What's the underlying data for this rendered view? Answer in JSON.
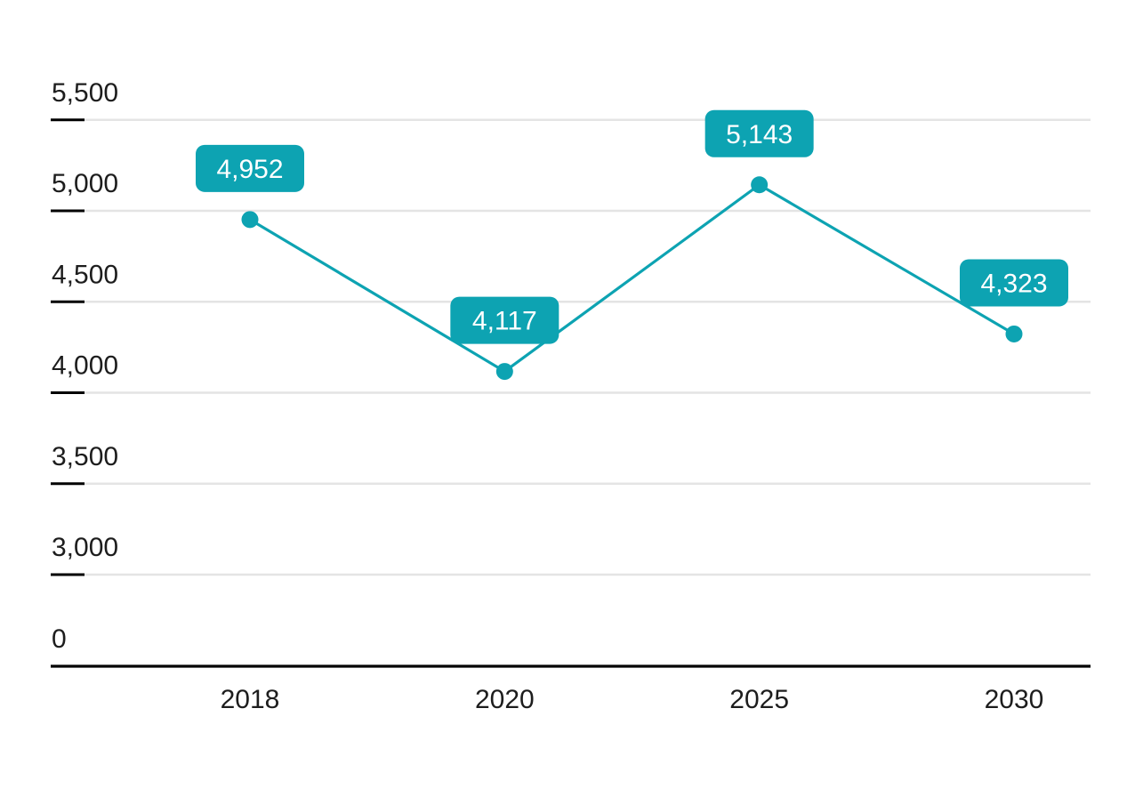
{
  "chart_data": {
    "type": "line",
    "categories": [
      "2018",
      "2020",
      "2025",
      "2030"
    ],
    "values": [
      4952,
      4117,
      5143,
      4323
    ],
    "value_labels": [
      "4,952",
      "4,117",
      "5,143",
      "4,323"
    ],
    "y_ticks": [
      {
        "value": 5500,
        "label": "5,500"
      },
      {
        "value": 5000,
        "label": "5,000"
      },
      {
        "value": 4500,
        "label": "4,500"
      },
      {
        "value": 4000,
        "label": "4,000"
      },
      {
        "value": 3500,
        "label": "3,500"
      },
      {
        "value": 3000,
        "label": "3,000"
      },
      {
        "value": 0,
        "label": "0"
      }
    ],
    "axis_break_between": [
      3000,
      0
    ],
    "grid": true,
    "legend": "none",
    "colors": {
      "line": "#0DA3B2",
      "marker": "#0DA3B2",
      "label_bg": "#0DA3B2",
      "label_text": "#FFFFFF",
      "grid": "#E4E4E4",
      "axis": "#000000",
      "tick_text": "#1D1D1D",
      "background": "#FFFFFF"
    }
  }
}
